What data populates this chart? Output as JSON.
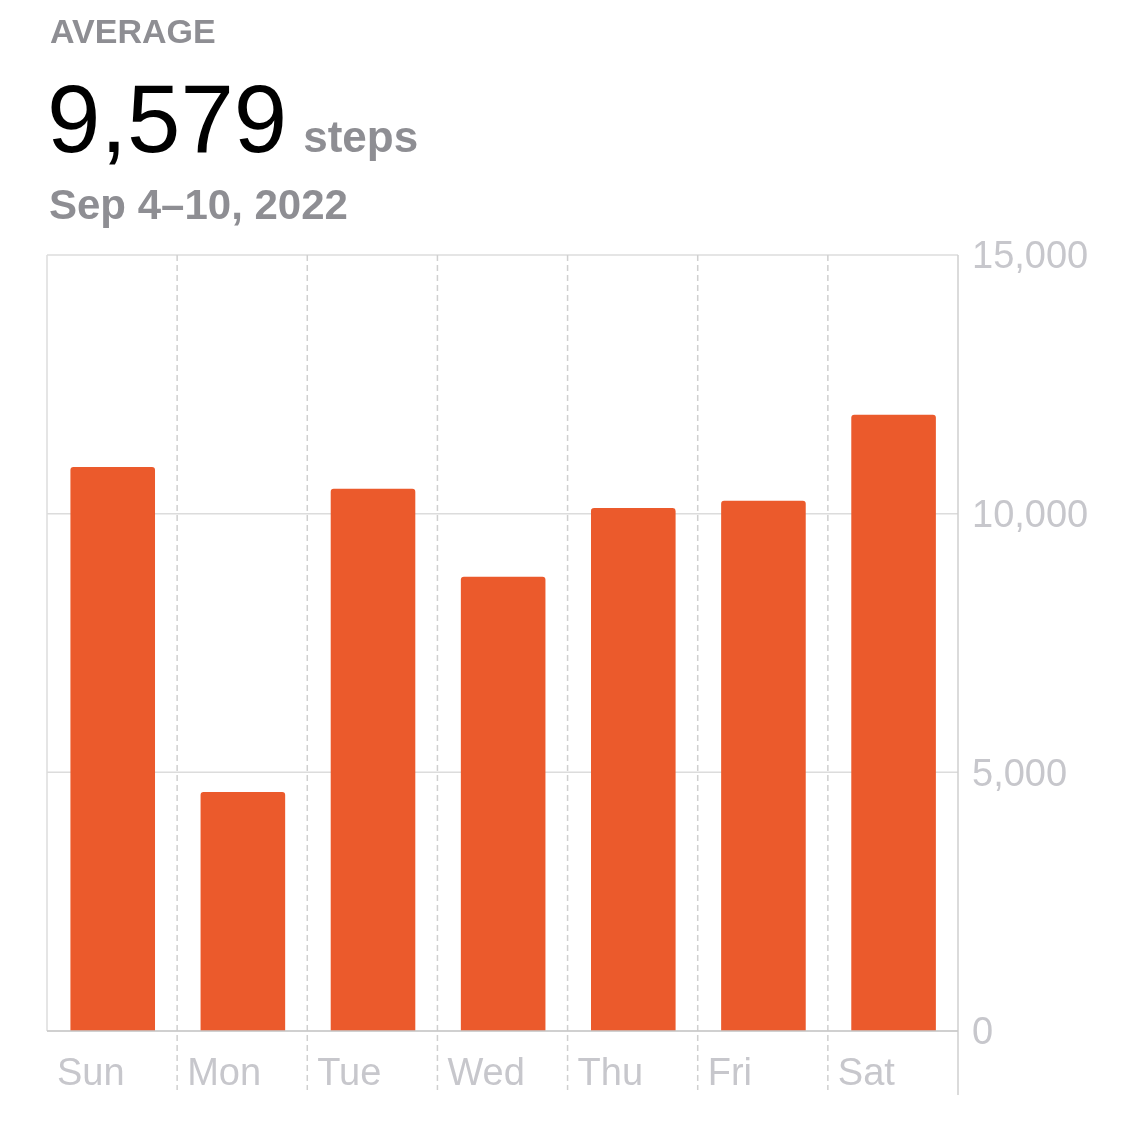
{
  "chart_data": {
    "type": "bar",
    "title": "9,579",
    "subtitle": "Sep 4–10, 2022",
    "annotations": [
      "AVERAGE",
      "steps"
    ],
    "categories": [
      "Sun",
      "Mon",
      "Tue",
      "Wed",
      "Thu",
      "Fri",
      "Sat"
    ],
    "values": [
      10900,
      4620,
      10480,
      8780,
      10110,
      10250,
      11910
    ],
    "color": "#eb5a2c",
    "ylim": [
      0,
      15000
    ],
    "yticks": [
      0,
      {
        "value": 5000,
        "label": "5,000"
      },
      {
        "value": 10000,
        "label": "10,000"
      },
      {
        "value": 15000,
        "label": "15,000"
      }
    ],
    "grid": true
  }
}
